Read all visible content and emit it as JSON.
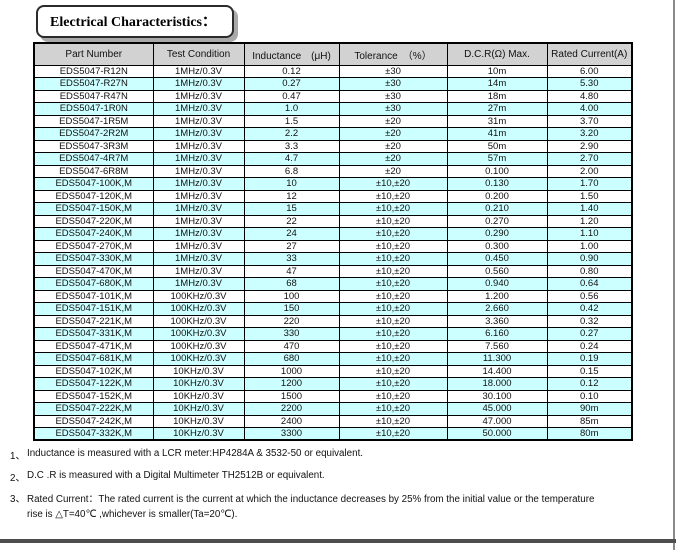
{
  "title": "Electrical Characteristics：",
  "colors": {
    "row_alt": "#ccffff",
    "header_bg": "#d2d2d2",
    "page_rule": "#4d4d4d"
  },
  "table": {
    "col_keys": [
      "part-number",
      "test-condition",
      "inductance",
      "tolerance",
      "dcr-max",
      "rated-current"
    ],
    "headers": [
      "Part Number",
      "Test Condition",
      "Inductance　(μH)",
      "Tolerance　（%）",
      "D.C.R(Ω) Max.",
      "Rated Current(A)"
    ],
    "rows": [
      [
        "EDS5047-R12N",
        "1MHz/0.3V",
        "0.12",
        "±30",
        "10m",
        "6.00"
      ],
      [
        "EDS5047-R27N",
        "1MHz/0.3V",
        "0.27",
        "±30",
        "14m",
        "5.30"
      ],
      [
        "EDS5047-R47N",
        "1MHz/0.3V",
        "0.47",
        "±30",
        "18m",
        "4.80"
      ],
      [
        "EDS5047-1R0N",
        "1MHz/0.3V",
        "1.0",
        "±30",
        "27m",
        "4.00"
      ],
      [
        "EDS5047-1R5M",
        "1MHz/0.3V",
        "1.5",
        "±20",
        "31m",
        "3.70"
      ],
      [
        "EDS5047-2R2M",
        "1MHz/0.3V",
        "2.2",
        "±20",
        "41m",
        "3.20"
      ],
      [
        "EDS5047-3R3M",
        "1MHz/0.3V",
        "3.3",
        "±20",
        "50m",
        "2.90"
      ],
      [
        "EDS5047-4R7M",
        "1MHz/0.3V",
        "4.7",
        "±20",
        "57m",
        "2.70"
      ],
      [
        "EDS5047-6R8M",
        "1MHz/0.3V",
        "6.8",
        "±20",
        "0.100",
        "2.00"
      ],
      [
        "EDS5047-100K,M",
        "1MHz/0.3V",
        "10",
        "±10,±20",
        "0.130",
        "1.70"
      ],
      [
        "EDS5047-120K,M",
        "1MHz/0.3V",
        "12",
        "±10,±20",
        "0.200",
        "1.50"
      ],
      [
        "EDS5047-150K,M",
        "1MHz/0.3V",
        "15",
        "±10,±20",
        "0.210",
        "1.40"
      ],
      [
        "EDS5047-220K,M",
        "1MHz/0.3V",
        "22",
        "±10,±20",
        "0.270",
        "1.20"
      ],
      [
        "EDS5047-240K,M",
        "1MHz/0.3V",
        "24",
        "±10,±20",
        "0.290",
        "1.10"
      ],
      [
        "EDS5047-270K,M",
        "1MHz/0.3V",
        "27",
        "±10,±20",
        "0.300",
        "1.00"
      ],
      [
        "EDS5047-330K,M",
        "1MHz/0.3V",
        "33",
        "±10,±20",
        "0.450",
        "0.90"
      ],
      [
        "EDS5047-470K,M",
        "1MHz/0.3V",
        "47",
        "±10,±20",
        "0.560",
        "0.80"
      ],
      [
        "EDS5047-680K,M",
        "1MHz/0.3V",
        "68",
        "±10,±20",
        "0.940",
        "0.64"
      ],
      [
        "EDS5047-101K,M",
        "100KHz/0.3V",
        "100",
        "±10,±20",
        "1.200",
        "0.56"
      ],
      [
        "EDS5047-151K,M",
        "100KHz/0.3V",
        "150",
        "±10,±20",
        "2.660",
        "0.42"
      ],
      [
        "EDS5047-221K,M",
        "100KHz/0.3V",
        "220",
        "±10,±20",
        "3.360",
        "0.32"
      ],
      [
        "EDS5047-331K,M",
        "100KHz/0.3V",
        "330",
        "±10,±20",
        "6.160",
        "0.27"
      ],
      [
        "EDS5047-471K,M",
        "100KHz/0.3V",
        "470",
        "±10,±20",
        "7.560",
        "0.24"
      ],
      [
        "EDS5047-681K,M",
        "100KHz/0.3V",
        "680",
        "±10,±20",
        "11.300",
        "0.19"
      ],
      [
        "EDS5047-102K,M",
        "10KHz/0.3V",
        "1000",
        "±10,±20",
        "14.400",
        "0.15"
      ],
      [
        "EDS5047-122K,M",
        "10KHz/0.3V",
        "1200",
        "±10,±20",
        "18.000",
        "0.12"
      ],
      [
        "EDS5047-152K,M",
        "10KHz/0.3V",
        "1500",
        "±10,±20",
        "30.100",
        "0.10"
      ],
      [
        "EDS5047-222K,M",
        "10KHz/0.3V",
        "2200",
        "±10,±20",
        "45.000",
        "90m"
      ],
      [
        "EDS5047-242K,M",
        "10KHz/0.3V",
        "2400",
        "±10,±20",
        "47.000",
        "85m"
      ],
      [
        "EDS5047-332K,M",
        "10KHz/0.3V",
        "3300",
        "±10,±20",
        "50.000",
        "80m"
      ]
    ]
  },
  "notes": [
    {
      "num": "1、",
      "lines": [
        "Inductance is measured with a LCR meter:HP4284A & 3532-50 or equivalent."
      ]
    },
    {
      "num": "2、",
      "lines": [
        "D.C .R is measured with a Digital Multimeter TH2512B or equivalent."
      ]
    },
    {
      "num": "3、",
      "lines": [
        "Rated Current：The rated current is the current at which the inductance decreases by 25% from the initial value or the temperature",
        "rise is △T=40℃ ,whichever is smaller(Ta=20℃)."
      ]
    }
  ]
}
